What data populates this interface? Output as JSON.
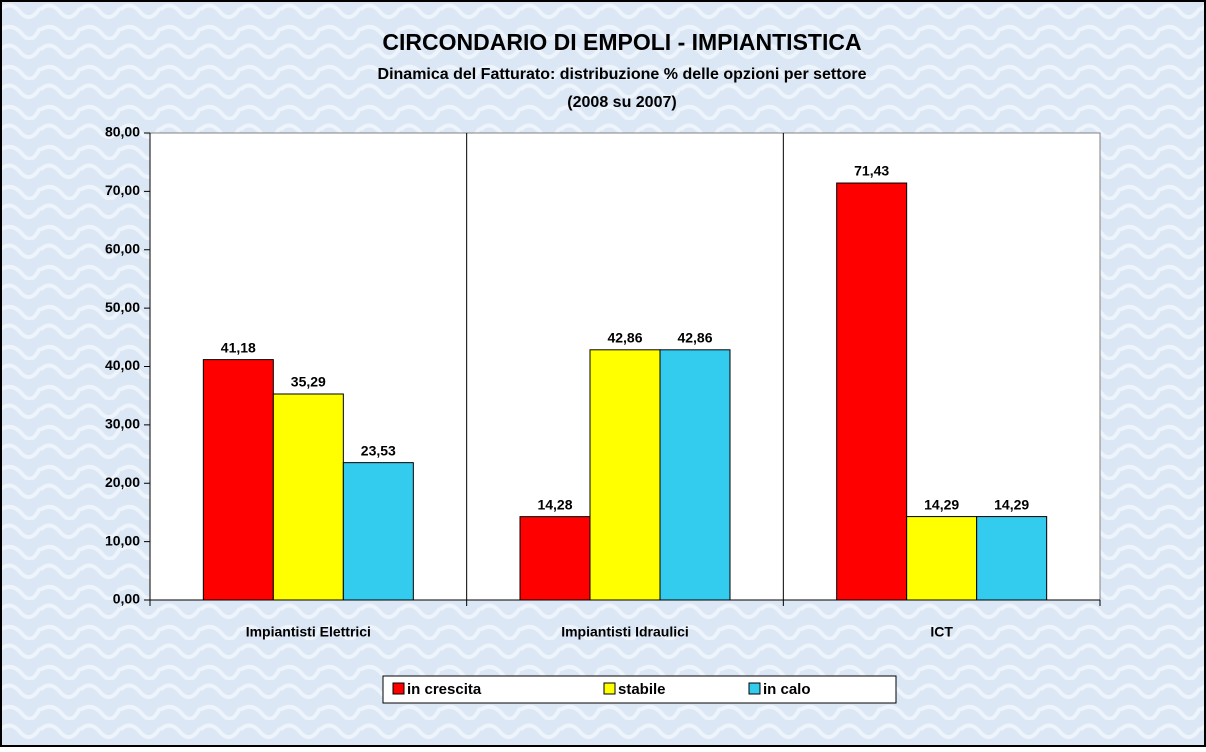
{
  "chart_data": {
    "type": "bar",
    "title": "CIRCONDARIO DI EMPOLI - IMPIANTISTICA",
    "subtitle": [
      "Dinamica del Fatturato: distribuzione % delle opzioni per settore",
      "(2008 su 2007)"
    ],
    "categories": [
      "Impiantisti Elettrici",
      "Impiantisti Idraulici",
      "ICT"
    ],
    "series": [
      {
        "name": "in crescita",
        "color": "#ff0000",
        "values": [
          41.18,
          14.28,
          71.43
        ],
        "value_labels": [
          "41,18",
          "14,28",
          "71,43"
        ]
      },
      {
        "name": "stabile",
        "color": "#ffff00",
        "values": [
          35.29,
          42.86,
          14.29
        ],
        "value_labels": [
          "35,29",
          "42,86",
          "14,29"
        ]
      },
      {
        "name": "in calo",
        "color": "#33ccee",
        "values": [
          23.53,
          42.86,
          14.29
        ],
        "value_labels": [
          "23,53",
          "42,86",
          "14,29"
        ]
      }
    ],
    "ylim": [
      0,
      80
    ],
    "yticks": [
      {
        "value": 0,
        "label": "0,00"
      },
      {
        "value": 10,
        "label": "10,00"
      },
      {
        "value": 20,
        "label": "20,00"
      },
      {
        "value": 30,
        "label": "30,00"
      },
      {
        "value": 40,
        "label": "40,00"
      },
      {
        "value": 50,
        "label": "50,00"
      },
      {
        "value": 60,
        "label": "60,00"
      },
      {
        "value": 70,
        "label": "70,00"
      },
      {
        "value": 80,
        "label": "80,00"
      }
    ],
    "legend": "bottom"
  }
}
